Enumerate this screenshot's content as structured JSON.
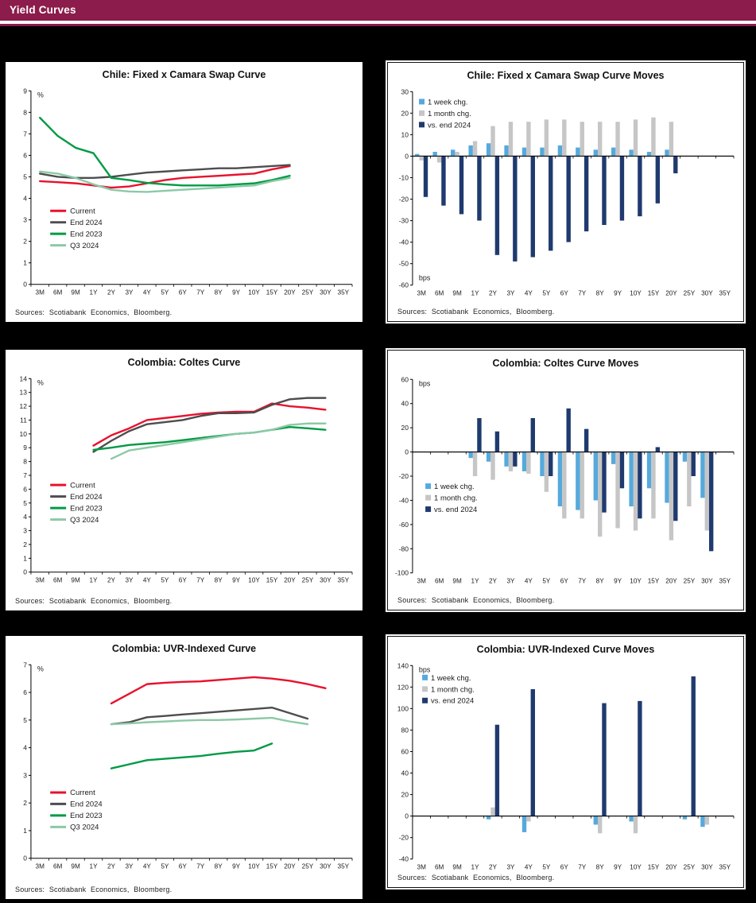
{
  "header": {
    "title": "Yield Curves"
  },
  "sources": "Sources: Scotiabank Economics, Bloomberg.",
  "colors": {
    "header_bg": "#8B1C4B",
    "page_bg": "#000000",
    "panel_bg": "#FFFFFF",
    "current_red": "#E8112D",
    "end2024_gray": "#4D4D4D",
    "end2023_green": "#009A44",
    "q32024_lightgreen": "#8CC9A6",
    "week_blue": "#56A9DC",
    "month_gray": "#C6C6C6",
    "vsend_navy": "#1F3A6E"
  },
  "chart_data": [
    {
      "type": "line",
      "title": "Chile: Fixed x Camara Swap Curve",
      "unit": "%",
      "unit_pos": "top",
      "ylim": [
        0,
        9
      ],
      "ytick_step": 1,
      "grid": false,
      "legend": {
        "x": 0.06,
        "y": 0.62,
        "swatch": "line"
      },
      "categories": [
        "3M",
        "6M",
        "9M",
        "1Y",
        "2Y",
        "3Y",
        "4Y",
        "5Y",
        "6Y",
        "7Y",
        "8Y",
        "9Y",
        "10Y",
        "15Y",
        "20Y",
        "25Y",
        "30Y",
        "35Y"
      ],
      "series": [
        {
          "name": "Current",
          "color": "#E8112D",
          "values": [
            4.8,
            4.75,
            4.7,
            4.6,
            4.5,
            4.55,
            4.7,
            4.85,
            4.95,
            5.0,
            5.05,
            5.1,
            5.15,
            5.35,
            5.5,
            null,
            null,
            null
          ]
        },
        {
          "name": "End 2024",
          "color": "#4D4D4D",
          "values": [
            5.15,
            5.0,
            4.95,
            4.95,
            5.0,
            5.1,
            5.2,
            5.25,
            5.3,
            5.35,
            5.4,
            5.4,
            5.45,
            5.5,
            5.55,
            null,
            null,
            null
          ]
        },
        {
          "name": "End 2023",
          "color": "#009A44",
          "values": [
            7.75,
            6.9,
            6.35,
            6.1,
            4.95,
            4.85,
            4.72,
            4.65,
            4.6,
            4.6,
            4.6,
            4.65,
            4.7,
            4.85,
            5.05,
            null,
            null,
            null
          ]
        },
        {
          "name": "Q3 2024",
          "color": "#8CC9A6",
          "values": [
            5.25,
            5.15,
            4.95,
            4.65,
            4.4,
            4.32,
            4.3,
            4.35,
            4.4,
            4.45,
            4.5,
            4.55,
            4.6,
            4.8,
            4.95,
            null,
            null,
            null
          ]
        }
      ]
    },
    {
      "type": "bar",
      "title": "Chile: Fixed x Camara Swap Curve Moves",
      "unit": "bps",
      "unit_pos": "bottom",
      "ylim": [
        -60,
        30
      ],
      "ytick_step": 10,
      "grid": false,
      "legend": {
        "x": 0.02,
        "y": 0.06,
        "swatch": "rect"
      },
      "categories": [
        "3M",
        "6M",
        "9M",
        "1Y",
        "2Y",
        "3Y",
        "4Y",
        "5Y",
        "6Y",
        "7Y",
        "8Y",
        "9Y",
        "10Y",
        "15Y",
        "20Y",
        "25Y",
        "30Y",
        "35Y"
      ],
      "series": [
        {
          "name": "1 week chg.",
          "color": "#56A9DC",
          "values": [
            1,
            2,
            3,
            5,
            6,
            5,
            4,
            4,
            5,
            4,
            3,
            4,
            3,
            2,
            3,
            null,
            null,
            null
          ]
        },
        {
          "name": "1 month chg.",
          "color": "#C6C6C6",
          "values": [
            -2,
            -3,
            2,
            7,
            14,
            16,
            16,
            17,
            17,
            16,
            16,
            16,
            17,
            18,
            16,
            null,
            null,
            null
          ]
        },
        {
          "name": "vs. end 2024",
          "color": "#1F3A6E",
          "values": [
            -19,
            -23,
            -27,
            -30,
            -46,
            -49,
            -47,
            -44,
            -40,
            -35,
            -32,
            -30,
            -28,
            -22,
            -8,
            null,
            null,
            null
          ]
        }
      ]
    },
    {
      "type": "line",
      "title": "Colombia: Coltes Curve",
      "unit": "%",
      "unit_pos": "top",
      "ylim": [
        0,
        14
      ],
      "ytick_step": 1,
      "grid": false,
      "legend": {
        "x": 0.06,
        "y": 0.55,
        "swatch": "line"
      },
      "categories": [
        "3M",
        "6M",
        "9M",
        "1Y",
        "2Y",
        "3Y",
        "4Y",
        "5Y",
        "6Y",
        "7Y",
        "8Y",
        "9Y",
        "10Y",
        "15Y",
        "20Y",
        "25Y",
        "30Y",
        "35Y"
      ],
      "series": [
        {
          "name": "Current",
          "color": "#E8112D",
          "values": [
            null,
            null,
            null,
            9.15,
            9.9,
            10.4,
            11.0,
            11.15,
            11.3,
            11.45,
            11.55,
            11.6,
            11.6,
            12.2,
            12.0,
            11.9,
            11.75,
            null
          ]
        },
        {
          "name": "End 2024",
          "color": "#4D4D4D",
          "values": [
            null,
            null,
            null,
            8.7,
            9.5,
            10.2,
            10.7,
            10.85,
            11.0,
            11.3,
            11.5,
            11.5,
            11.55,
            12.1,
            12.5,
            12.6,
            12.6,
            null
          ]
        },
        {
          "name": "End 2023",
          "color": "#009A44",
          "values": [
            null,
            null,
            null,
            8.85,
            9.0,
            9.2,
            9.3,
            9.4,
            9.55,
            9.7,
            9.85,
            10.0,
            10.1,
            10.3,
            10.5,
            10.4,
            10.3,
            null
          ]
        },
        {
          "name": "Q3 2024",
          "color": "#8CC9A6",
          "values": [
            null,
            null,
            null,
            null,
            8.2,
            8.8,
            9.0,
            9.2,
            9.4,
            9.6,
            9.8,
            10.0,
            10.1,
            10.3,
            10.65,
            10.75,
            10.75,
            null
          ]
        }
      ]
    },
    {
      "type": "bar",
      "title": "Colombia: Coltes Curve Moves",
      "unit": "bps",
      "unit_pos": "top",
      "ylim": [
        -100,
        60
      ],
      "ytick_step": 20,
      "grid": false,
      "legend": {
        "x": 0.04,
        "y": 0.56,
        "swatch": "rect"
      },
      "categories": [
        "3M",
        "6M",
        "9M",
        "1Y",
        "2Y",
        "3Y",
        "4Y",
        "5Y",
        "6Y",
        "7Y",
        "8Y",
        "9Y",
        "10Y",
        "15Y",
        "20Y",
        "25Y",
        "30Y",
        "35Y"
      ],
      "series": [
        {
          "name": "1 week chg.",
          "color": "#56A9DC",
          "values": [
            null,
            null,
            null,
            -5,
            -8,
            -12,
            -16,
            -20,
            -45,
            -48,
            -40,
            -10,
            -45,
            -30,
            -42,
            -8,
            -38,
            null
          ]
        },
        {
          "name": "1 month chg.",
          "color": "#C6C6C6",
          "values": [
            null,
            null,
            null,
            -20,
            -23,
            -16,
            -18,
            -33,
            -55,
            -55,
            -70,
            -63,
            -65,
            -55,
            -73,
            -45,
            -65,
            null
          ]
        },
        {
          "name": "vs. end 2024",
          "color": "#1F3A6E",
          "values": [
            null,
            null,
            null,
            28,
            17,
            -12,
            28,
            -20,
            36,
            19,
            -50,
            -30,
            -55,
            4,
            -57,
            -20,
            -82,
            null
          ]
        }
      ]
    },
    {
      "type": "line",
      "title": "Colombia: UVR-Indexed Curve",
      "unit": "%",
      "unit_pos": "top",
      "ylim": [
        0,
        7
      ],
      "ytick_step": 1,
      "grid": false,
      "legend": {
        "x": 0.06,
        "y": 0.66,
        "swatch": "line"
      },
      "categories": [
        "3M",
        "6M",
        "9M",
        "1Y",
        "2Y",
        "3Y",
        "4Y",
        "5Y",
        "6Y",
        "7Y",
        "8Y",
        "9Y",
        "10Y",
        "15Y",
        "20Y",
        "25Y",
        "30Y",
        "35Y"
      ],
      "series": [
        {
          "name": "Current",
          "color": "#E8112D",
          "values": [
            null,
            null,
            null,
            null,
            5.6,
            5.95,
            6.3,
            6.35,
            6.38,
            6.4,
            6.45,
            6.5,
            6.55,
            6.5,
            6.42,
            6.3,
            6.15,
            null
          ]
        },
        {
          "name": "End 2024",
          "color": "#4D4D4D",
          "values": [
            null,
            null,
            null,
            null,
            4.85,
            4.92,
            5.1,
            5.15,
            5.2,
            5.25,
            5.3,
            5.35,
            5.4,
            5.45,
            5.25,
            5.05,
            null,
            null
          ]
        },
        {
          "name": "End 2023",
          "color": "#009A44",
          "values": [
            null,
            null,
            null,
            null,
            3.25,
            3.4,
            3.55,
            3.6,
            3.65,
            3.7,
            3.78,
            3.85,
            3.9,
            4.15,
            null,
            null,
            null,
            null
          ]
        },
        {
          "name": "Q3 2024",
          "color": "#8CC9A6",
          "values": [
            null,
            null,
            null,
            null,
            4.85,
            4.88,
            4.92,
            4.95,
            4.98,
            5.0,
            5.0,
            5.02,
            5.05,
            5.08,
            4.95,
            4.85,
            null,
            null
          ]
        }
      ]
    },
    {
      "type": "bar",
      "title": "Colombia: UVR-Indexed Curve Moves",
      "unit": "bps",
      "unit_pos": "top",
      "ylim": [
        -40,
        140
      ],
      "ytick_step": 20,
      "grid": false,
      "legend": {
        "x": 0.03,
        "y": 0.07,
        "swatch": "rect"
      },
      "categories": [
        "3M",
        "6M",
        "9M",
        "1Y",
        "2Y",
        "3Y",
        "4Y",
        "5Y",
        "6Y",
        "7Y",
        "8Y",
        "9Y",
        "10Y",
        "15Y",
        "20Y",
        "25Y",
        "30Y",
        "35Y"
      ],
      "series": [
        {
          "name": "1 week chg.",
          "color": "#56A9DC",
          "values": [
            null,
            null,
            null,
            null,
            -3,
            null,
            -15,
            null,
            null,
            null,
            -8,
            null,
            -5,
            null,
            null,
            -3,
            -10,
            null
          ]
        },
        {
          "name": "1 month chg.",
          "color": "#C6C6C6",
          "values": [
            null,
            null,
            null,
            null,
            8,
            null,
            -5,
            null,
            null,
            null,
            -16,
            null,
            -16,
            null,
            null,
            null,
            -8,
            null
          ]
        },
        {
          "name": "vs. end 2024",
          "color": "#1F3A6E",
          "values": [
            null,
            null,
            null,
            null,
            85,
            null,
            118,
            null,
            null,
            null,
            105,
            null,
            107,
            null,
            null,
            130,
            null,
            null
          ]
        }
      ]
    }
  ]
}
